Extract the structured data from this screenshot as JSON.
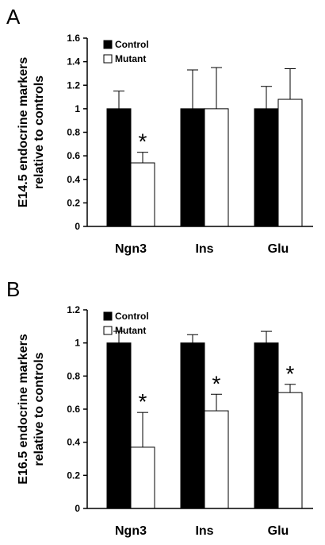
{
  "panels": [
    {
      "letter": "A",
      "ylabel_line1": "E14.5 endocrine markers",
      "ylabel_line2": "relative to controls"
    },
    {
      "letter": "B",
      "ylabel_line1": "E16.5 endocrine markers",
      "ylabel_line2": "relative to controls"
    }
  ],
  "chart_data": [
    {
      "type": "bar",
      "panel": "A",
      "categories": [
        "Ngn3",
        "Ins",
        "Glu"
      ],
      "series": [
        {
          "name": "Control",
          "color": "#000000",
          "values": [
            1.0,
            1.0,
            1.0
          ],
          "errors": [
            0.15,
            0.33,
            0.19
          ]
        },
        {
          "name": "Mutant",
          "color": "#ffffff",
          "values": [
            0.54,
            1.0,
            1.08
          ],
          "errors": [
            0.09,
            0.35,
            0.26
          ]
        }
      ],
      "significance": [
        "*",
        "",
        ""
      ],
      "ylabel": "E14.5 endocrine markers relative to controls",
      "ylim": [
        0,
        1.6
      ],
      "yticks": [
        "0",
        "0.2",
        "0.4",
        "0.6",
        "0.8",
        "1",
        "1.2",
        "1.4",
        "1.6"
      ],
      "legend": "top-left"
    },
    {
      "type": "bar",
      "panel": "B",
      "categories": [
        "Ngn3",
        "Ins",
        "Glu"
      ],
      "series": [
        {
          "name": "Control",
          "color": "#000000",
          "values": [
            1.0,
            1.0,
            1.0
          ],
          "errors": [
            0.07,
            0.05,
            0.07
          ]
        },
        {
          "name": "Mutant",
          "color": "#ffffff",
          "values": [
            0.37,
            0.59,
            0.7
          ],
          "errors": [
            0.21,
            0.1,
            0.05
          ]
        }
      ],
      "significance": [
        "*",
        "*",
        "*"
      ],
      "ylabel": "E16.5 endocrine markers relative to controls",
      "ylim": [
        0,
        1.2
      ],
      "yticks": [
        "0",
        "0.2",
        "0.4",
        "0.6",
        "0.8",
        "1",
        "1.2"
      ],
      "legend": "top-left"
    }
  ]
}
